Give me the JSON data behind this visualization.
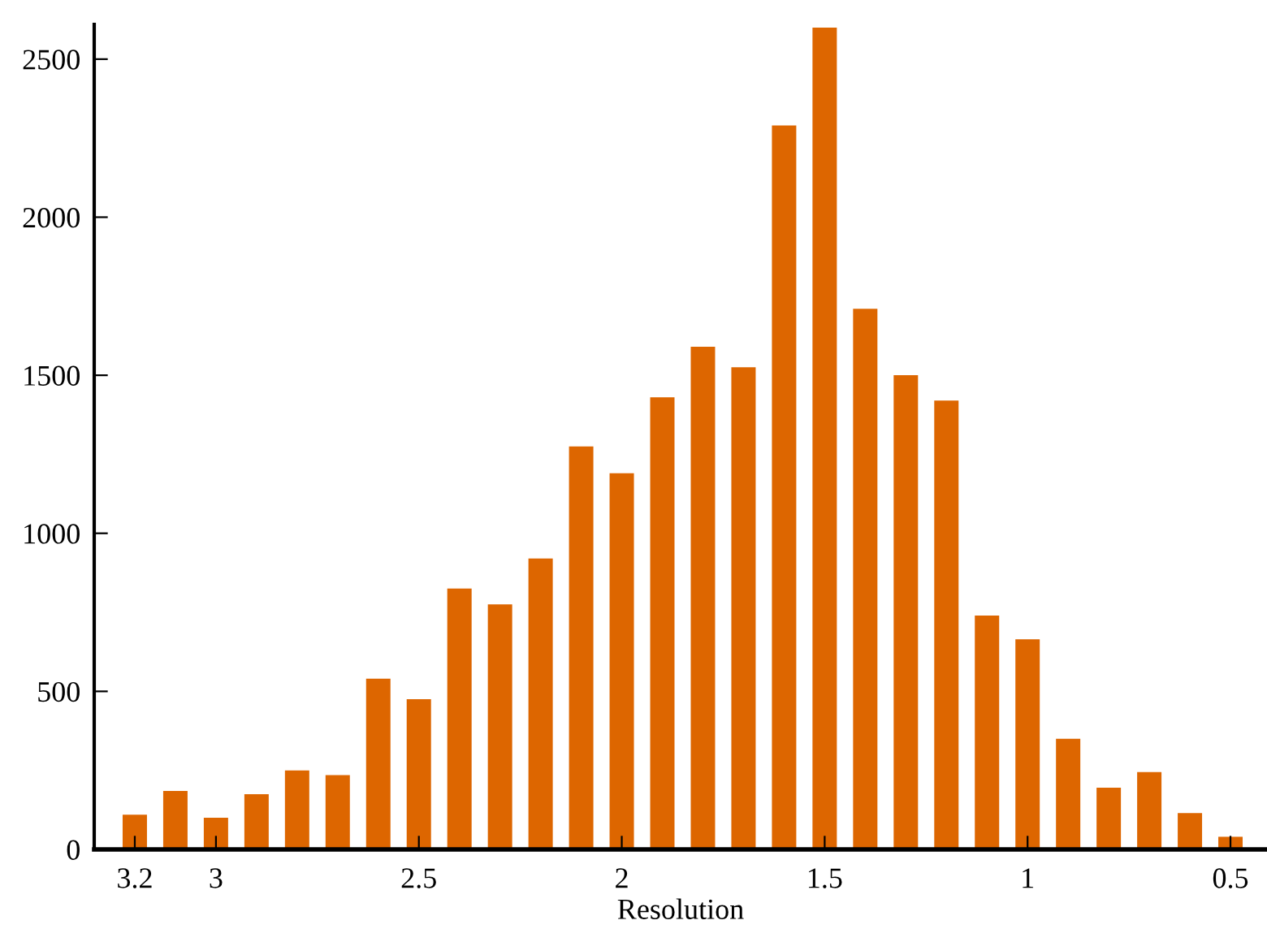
{
  "chart_data": {
    "type": "bar",
    "xlabel": "Resolution",
    "x": [
      3.2,
      3.1,
      3.0,
      2.9,
      2.8,
      2.7,
      2.6,
      2.5,
      2.4,
      2.3,
      2.2,
      2.1,
      2.0,
      1.9,
      1.8,
      1.7,
      1.6,
      1.5,
      1.4,
      1.3,
      1.2,
      1.1,
      1.0,
      0.9,
      0.8,
      0.7,
      0.6,
      0.5
    ],
    "values": [
      110,
      185,
      100,
      175,
      250,
      235,
      540,
      475,
      825,
      775,
      920,
      1275,
      1190,
      1430,
      1590,
      1525,
      2290,
      2600,
      1710,
      1500,
      1420,
      740,
      665,
      350,
      195,
      245,
      115,
      40
    ],
    "color": "#dd6600",
    "xlim": [
      3.3,
      0.41
    ],
    "xticks": [
      3.2,
      3,
      2.5,
      2,
      1.5,
      1,
      0.5
    ],
    "ylim": [
      0,
      2610
    ],
    "yticks": [
      0,
      500,
      1000,
      1500,
      2000,
      2500
    ],
    "grid": false,
    "legend": false
  }
}
